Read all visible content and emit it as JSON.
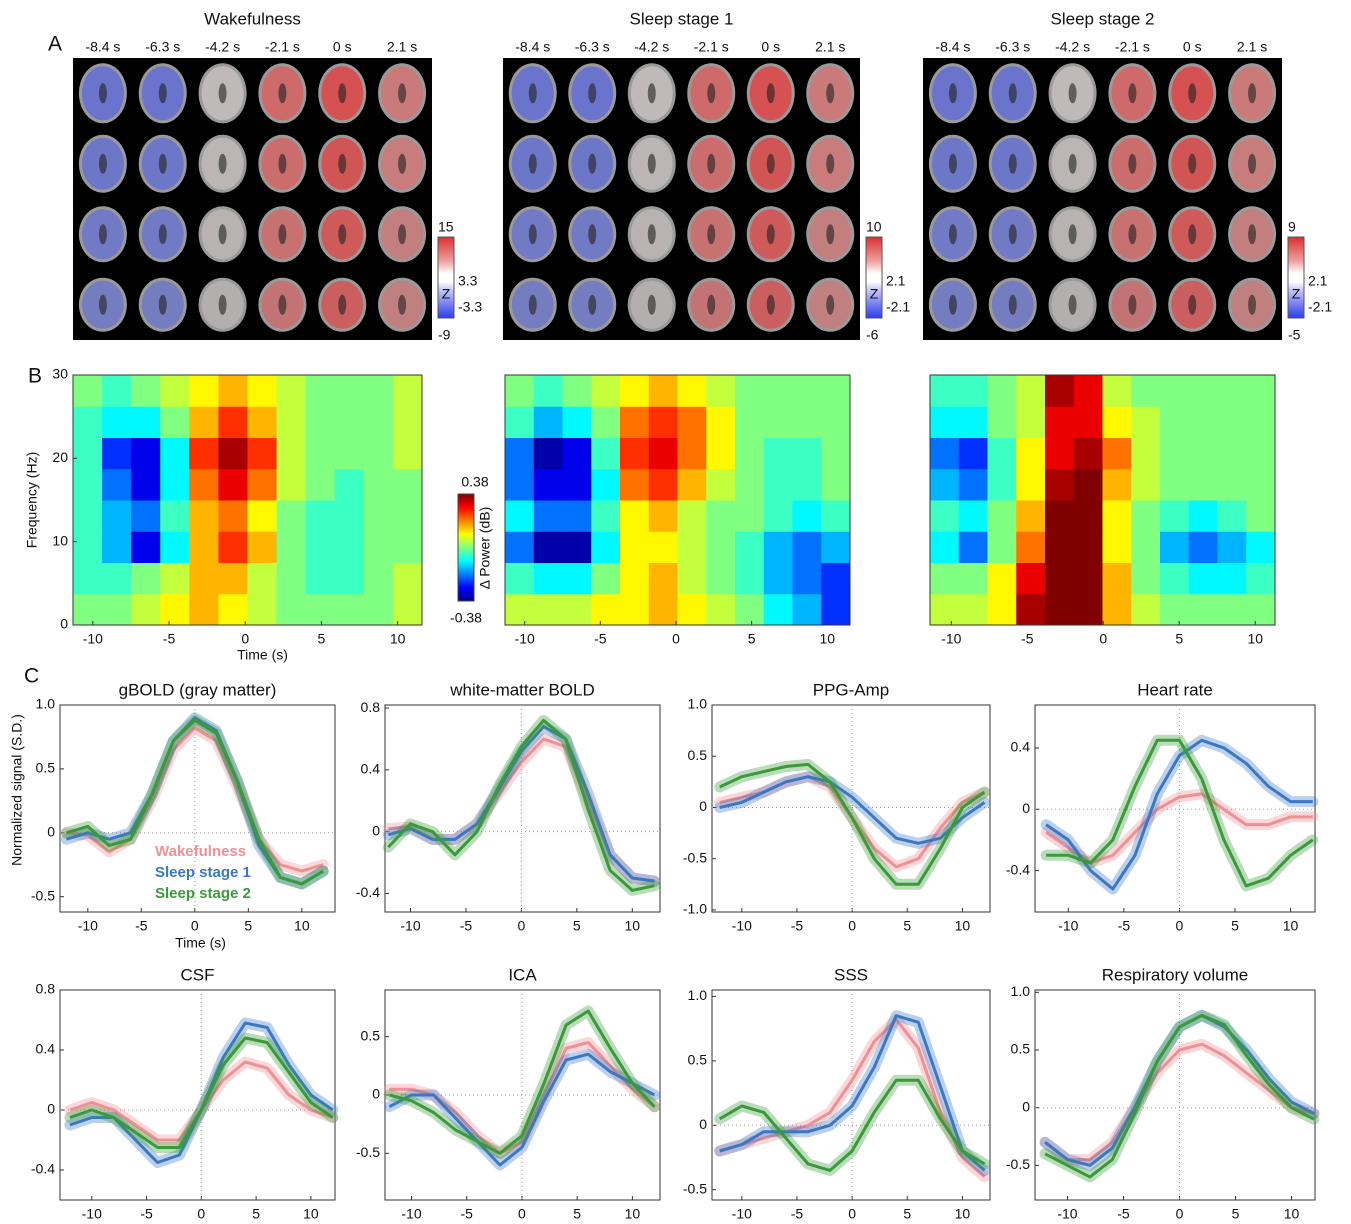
{
  "panel_labels": [
    "A",
    "B",
    "C"
  ],
  "brain_maps": [
    {
      "title": "Wakefulness",
      "time_labels": [
        "-8.4 s",
        "-6.3 s",
        "-4.2 s",
        "-2.1 s",
        "0 s",
        "2.1 s"
      ],
      "colorbar": {
        "label": "Z",
        "max": 15,
        "upper": 3.3,
        "lower": -3.3,
        "min": -9
      }
    },
    {
      "title": "Sleep stage 1",
      "time_labels": [
        "-8.4 s",
        "-6.3 s",
        "-4.2 s",
        "-2.1 s",
        "0 s",
        "2.1 s"
      ],
      "colorbar": {
        "label": "Z",
        "max": 10,
        "upper": 2.1,
        "lower": -2.1,
        "min": -6
      }
    },
    {
      "title": "Sleep stage 2",
      "time_labels": [
        "-8.4 s",
        "-6.3 s",
        "-4.2 s",
        "-2.1 s",
        "0 s",
        "2.1 s"
      ],
      "colorbar": {
        "label": "Z",
        "max": 9,
        "upper": 2.1,
        "lower": -2.1,
        "min": -5
      }
    }
  ],
  "chart_data": [
    {
      "type": "heatmap",
      "xlabel": "Time (s)",
      "ylabel": "Frequency (Hz)",
      "xlim": [
        -11.3,
        11.6
      ],
      "ylim": [
        0,
        30
      ],
      "xticks": [
        -10,
        -5,
        0,
        5,
        10
      ],
      "yticks": [
        0,
        10,
        20,
        30
      ],
      "clim": [
        -0.38,
        0.38
      ],
      "colorbar": {
        "label": "Δ Power (dB)",
        "ticks": [
          0.38,
          -0.38
        ]
      },
      "z": [
        [
          0,
          0,
          0.05,
          0.1,
          0.15,
          0.1,
          0.05,
          0,
          0,
          0,
          0,
          0.05
        ],
        [
          -0.05,
          -0.05,
          0,
          0.05,
          0.15,
          0.15,
          0.05,
          0,
          -0.05,
          -0.05,
          0,
          0.05
        ],
        [
          -0.05,
          -0.15,
          -0.3,
          -0.1,
          0.15,
          0.25,
          0.15,
          0,
          -0.05,
          -0.05,
          0,
          0
        ],
        [
          -0.05,
          -0.15,
          -0.2,
          -0.05,
          0.15,
          0.2,
          0.1,
          0,
          -0.05,
          -0.05,
          0,
          0
        ],
        [
          -0.05,
          -0.2,
          -0.3,
          -0.1,
          0.2,
          0.3,
          0.2,
          0.05,
          0,
          -0.05,
          0,
          0
        ],
        [
          -0.05,
          -0.25,
          -0.3,
          -0.1,
          0.25,
          0.35,
          0.25,
          0.05,
          0,
          0,
          0,
          0.05
        ],
        [
          -0.05,
          -0.1,
          -0.1,
          0,
          0.15,
          0.25,
          0.15,
          0.05,
          0,
          0,
          0,
          0.05
        ],
        [
          0,
          -0.05,
          0,
          0.05,
          0.1,
          0.15,
          0.1,
          0.05,
          0,
          0,
          0,
          0.05
        ]
      ]
    },
    {
      "type": "heatmap",
      "xlim": [
        -11.3,
        11.5
      ],
      "ylim": [
        0,
        30
      ],
      "xticks": [
        -10,
        -5,
        0,
        5,
        10
      ],
      "clim": [
        -0.38,
        0.38
      ],
      "z": [
        [
          0.05,
          0.05,
          0.05,
          0.1,
          0.1,
          0.15,
          0.1,
          0.05,
          0,
          -0.1,
          -0.15,
          -0.25
        ],
        [
          -0.05,
          -0.1,
          -0.1,
          0,
          0.1,
          0.15,
          0.05,
          0,
          -0.05,
          -0.15,
          -0.2,
          -0.25
        ],
        [
          -0.2,
          -0.35,
          -0.35,
          -0.1,
          0.1,
          0.1,
          0.05,
          0,
          -0.05,
          -0.15,
          -0.2,
          -0.15
        ],
        [
          -0.1,
          -0.2,
          -0.2,
          -0.05,
          0.1,
          0.15,
          0.05,
          0,
          0,
          -0.05,
          -0.1,
          -0.05
        ],
        [
          -0.2,
          -0.3,
          -0.3,
          -0.1,
          0.2,
          0.25,
          0.15,
          0.05,
          0,
          -0.05,
          -0.05,
          0
        ],
        [
          -0.2,
          -0.35,
          -0.3,
          -0.05,
          0.25,
          0.3,
          0.2,
          0.1,
          0,
          -0.05,
          -0.05,
          0
        ],
        [
          -0.05,
          -0.15,
          -0.1,
          0,
          0.2,
          0.25,
          0.2,
          0.1,
          0,
          0,
          0,
          0
        ],
        [
          0,
          -0.05,
          0,
          0.05,
          0.1,
          0.15,
          0.1,
          0.05,
          0,
          0,
          0,
          0
        ]
      ]
    },
    {
      "type": "heatmap",
      "xlim": [
        -11.4,
        11.3
      ],
      "ylim": [
        0,
        30
      ],
      "xticks": [
        -10,
        -5,
        0,
        5,
        10
      ],
      "clim": [
        -0.38,
        0.38
      ],
      "z": [
        [
          0.05,
          0.05,
          0.1,
          0.35,
          0.4,
          0.4,
          0.15,
          0.05,
          0,
          0,
          0,
          0
        ],
        [
          0,
          0,
          0.1,
          0.3,
          0.4,
          0.4,
          0.15,
          0,
          -0.05,
          -0.1,
          -0.1,
          -0.05
        ],
        [
          -0.1,
          -0.2,
          0,
          0.2,
          0.38,
          0.4,
          0.1,
          0,
          -0.15,
          -0.2,
          -0.15,
          -0.1
        ],
        [
          -0.05,
          -0.1,
          0,
          0.15,
          0.38,
          0.4,
          0.1,
          0,
          -0.05,
          -0.1,
          -0.05,
          0
        ],
        [
          -0.15,
          -0.2,
          -0.05,
          0.1,
          0.35,
          0.38,
          0.15,
          0.05,
          0,
          0,
          0,
          0
        ],
        [
          -0.2,
          -0.25,
          -0.05,
          0.1,
          0.3,
          0.35,
          0.2,
          0.05,
          0,
          0,
          0,
          0
        ],
        [
          -0.1,
          -0.1,
          0,
          0.05,
          0.3,
          0.3,
          0.1,
          0.05,
          0,
          0,
          0,
          0
        ],
        [
          -0.05,
          -0.05,
          0,
          0.05,
          0.35,
          0.3,
          0.05,
          0,
          0,
          0,
          0,
          0
        ]
      ]
    },
    {
      "type": "line",
      "title": "gBOLD (gray matter)",
      "xlabel": "Time (s)",
      "ylabel": "Normalized signal (S.D.)",
      "legend": true,
      "x": [
        -12,
        -10,
        -8,
        -6,
        -4,
        -2,
        0,
        2,
        4,
        6,
        8,
        10,
        12
      ],
      "xlim": [
        -12.6,
        13.1
      ],
      "ylim": [
        -0.62,
        1.0
      ],
      "xticks": [
        -10,
        -5,
        0,
        5,
        10
      ],
      "yticks": [
        -0.5,
        0,
        0.5,
        {
          "value": 1,
          "label": "1.0"
        }
      ],
      "series": [
        {
          "name": "Wakefulness",
          "color": "#f08f94",
          "values": [
            0,
            -0.02,
            -0.15,
            -0.05,
            0.25,
            0.65,
            0.82,
            0.72,
            0.35,
            -0.05,
            -0.25,
            -0.3,
            -0.25
          ]
        },
        {
          "name": "Sleep stage 1",
          "color": "#3b78c4",
          "values": [
            -0.05,
            0,
            -0.05,
            0,
            0.3,
            0.72,
            0.9,
            0.8,
            0.4,
            -0.1,
            -0.35,
            -0.4,
            -0.3
          ]
        },
        {
          "name": "Sleep stage 2",
          "color": "#3a9a3a",
          "values": [
            0,
            0.05,
            -0.1,
            -0.05,
            0.3,
            0.72,
            0.88,
            0.78,
            0.4,
            -0.05,
            -0.35,
            -0.4,
            -0.3
          ]
        }
      ]
    },
    {
      "type": "line",
      "title": "white-matter BOLD",
      "x": [
        -12,
        -10,
        -8,
        -6,
        -4,
        -2,
        0,
        2,
        4,
        6,
        8,
        10,
        12
      ],
      "xlim": [
        -12.3,
        12.5
      ],
      "ylim": [
        -0.52,
        0.82
      ],
      "xticks": [
        -10,
        -5,
        0,
        5,
        10
      ],
      "yticks": [
        -0.4,
        0,
        0.4,
        0.8
      ],
      "series": [
        {
          "color": "#f08f94",
          "values": [
            0.02,
            0.03,
            -0.05,
            -0.05,
            0.05,
            0.25,
            0.45,
            0.6,
            0.55,
            0.2,
            -0.15,
            -0.3,
            -0.32
          ]
        },
        {
          "color": "#3b78c4",
          "values": [
            -0.02,
            0.02,
            -0.05,
            -0.05,
            0.05,
            0.28,
            0.52,
            0.68,
            0.6,
            0.25,
            -0.15,
            -0.3,
            -0.32
          ]
        },
        {
          "color": "#3a9a3a",
          "values": [
            -0.1,
            0.05,
            0,
            -0.15,
            0,
            0.3,
            0.55,
            0.72,
            0.6,
            0.15,
            -0.25,
            -0.38,
            -0.35
          ]
        }
      ]
    },
    {
      "type": "line",
      "title": "PPG-Amp",
      "x": [
        -12,
        -10,
        -8,
        -6,
        -4,
        -2,
        0,
        2,
        4,
        6,
        8,
        10,
        12
      ],
      "xlim": [
        -12.7,
        12.5
      ],
      "ylim": [
        -1.02,
        1.0
      ],
      "xticks": [
        -10,
        -5,
        0,
        5,
        10
      ],
      "yticks": [
        {
          "value": -1,
          "label": "-1.0"
        },
        -0.5,
        0,
        0.5,
        {
          "value": 1,
          "label": "1.0"
        }
      ],
      "series": [
        {
          "color": "#f08f94",
          "values": [
            0.05,
            0.1,
            0.15,
            0.25,
            0.3,
            0.2,
            -0.1,
            -0.4,
            -0.58,
            -0.5,
            -0.2,
            0.05,
            0.15
          ]
        },
        {
          "color": "#3b78c4",
          "values": [
            0,
            0.05,
            0.15,
            0.25,
            0.3,
            0.25,
            0.1,
            -0.1,
            -0.3,
            -0.35,
            -0.3,
            -0.1,
            0.05
          ]
        },
        {
          "color": "#3a9a3a",
          "values": [
            0.2,
            0.3,
            0.35,
            0.4,
            0.42,
            0.25,
            -0.1,
            -0.5,
            -0.75,
            -0.75,
            -0.4,
            0,
            0.15
          ]
        }
      ]
    },
    {
      "type": "line",
      "title": "Heart rate",
      "x": [
        -12,
        -10,
        -8,
        -6,
        -4,
        -2,
        0,
        2,
        4,
        6,
        8,
        10,
        12
      ],
      "xlim": [
        -13.0,
        12.2
      ],
      "ylim": [
        -0.67,
        0.68
      ],
      "xticks": [
        -10,
        -5,
        0,
        5,
        10
      ],
      "yticks": [
        -0.4,
        0,
        0.4
      ],
      "series": [
        {
          "color": "#f08f94",
          "values": [
            -0.15,
            -0.25,
            -0.35,
            -0.3,
            -0.15,
            0,
            0.08,
            0.1,
            0,
            -0.1,
            -0.1,
            -0.05,
            -0.05
          ]
        },
        {
          "color": "#3b78c4",
          "values": [
            -0.1,
            -0.2,
            -0.4,
            -0.52,
            -0.3,
            0.1,
            0.35,
            0.45,
            0.4,
            0.3,
            0.15,
            0.05,
            0.05
          ]
        },
        {
          "color": "#3a9a3a",
          "values": [
            -0.3,
            -0.3,
            -0.35,
            -0.2,
            0.15,
            0.45,
            0.45,
            0.2,
            -0.2,
            -0.5,
            -0.45,
            -0.3,
            -0.2
          ]
        }
      ]
    },
    {
      "type": "line",
      "title": "CSF",
      "x": [
        -12,
        -10,
        -8,
        -6,
        -4,
        -2,
        0,
        2,
        4,
        6,
        8,
        10,
        12
      ],
      "xlim": [
        -12.9,
        12.2
      ],
      "ylim": [
        -0.6,
        0.8
      ],
      "xticks": [
        -10,
        -5,
        0,
        5,
        10
      ],
      "yticks": [
        -0.4,
        0,
        0.4,
        0.8
      ],
      "series": [
        {
          "color": "#f08f94",
          "values": [
            0,
            0.05,
            0,
            -0.1,
            -0.2,
            -0.2,
            0,
            0.2,
            0.32,
            0.28,
            0.1,
            0,
            -0.05
          ]
        },
        {
          "color": "#3b78c4",
          "values": [
            -0.1,
            -0.05,
            -0.05,
            -0.2,
            -0.35,
            -0.3,
            0,
            0.35,
            0.58,
            0.55,
            0.3,
            0.1,
            0
          ]
        },
        {
          "color": "#3a9a3a",
          "values": [
            -0.05,
            0,
            -0.05,
            -0.15,
            -0.25,
            -0.25,
            0,
            0.3,
            0.48,
            0.45,
            0.25,
            0.05,
            -0.05
          ]
        }
      ]
    },
    {
      "type": "line",
      "title": "ICA",
      "x": [
        -12,
        -10,
        -8,
        -6,
        -4,
        -2,
        0,
        2,
        4,
        6,
        8,
        10,
        12
      ],
      "xlim": [
        -12.4,
        12.5
      ],
      "ylim": [
        -0.9,
        0.9
      ],
      "xticks": [
        -10,
        -5,
        0,
        5,
        10
      ],
      "yticks": [
        -0.5,
        0,
        0.5
      ],
      "series": [
        {
          "color": "#f08f94",
          "values": [
            0.05,
            0.05,
            0,
            -0.15,
            -0.35,
            -0.5,
            -0.4,
            0,
            0.4,
            0.45,
            0.25,
            0.05,
            -0.1
          ]
        },
        {
          "color": "#3b78c4",
          "values": [
            -0.1,
            0,
            0,
            -0.2,
            -0.4,
            -0.6,
            -0.45,
            -0.05,
            0.3,
            0.35,
            0.2,
            0.1,
            0
          ]
        },
        {
          "color": "#3a9a3a",
          "values": [
            0,
            -0.05,
            -0.15,
            -0.3,
            -0.4,
            -0.5,
            -0.35,
            0.1,
            0.6,
            0.72,
            0.4,
            0.1,
            -0.1
          ]
        }
      ]
    },
    {
      "type": "line",
      "title": "SSS",
      "x": [
        -12,
        -10,
        -8,
        -6,
        -4,
        -2,
        0,
        2,
        4,
        6,
        8,
        10,
        12
      ],
      "xlim": [
        -12.7,
        12.5
      ],
      "ylim": [
        -0.58,
        1.05
      ],
      "xticks": [
        -10,
        -5,
        0,
        5,
        10
      ],
      "yticks": [
        -0.5,
        0,
        0.5,
        {
          "value": 1,
          "label": "1.0"
        }
      ],
      "series": [
        {
          "color": "#f08f94",
          "values": [
            -0.2,
            -0.15,
            -0.1,
            -0.05,
            0,
            0.1,
            0.35,
            0.65,
            0.82,
            0.6,
            0.1,
            -0.25,
            -0.4
          ]
        },
        {
          "color": "#3b78c4",
          "values": [
            -0.2,
            -0.15,
            -0.05,
            -0.05,
            -0.05,
            0,
            0.15,
            0.45,
            0.85,
            0.8,
            0.3,
            -0.2,
            -0.35
          ]
        },
        {
          "color": "#3a9a3a",
          "values": [
            0.05,
            0.15,
            0.1,
            -0.1,
            -0.3,
            -0.35,
            -0.2,
            0.1,
            0.35,
            0.35,
            0.05,
            -0.2,
            -0.3
          ]
        }
      ]
    },
    {
      "type": "line",
      "title": "Respiratory volume",
      "x": [
        -12,
        -10,
        -8,
        -6,
        -4,
        -2,
        0,
        2,
        4,
        6,
        8,
        10,
        12
      ],
      "xlim": [
        -12.9,
        12.1
      ],
      "ylim": [
        -0.8,
        1.02
      ],
      "xticks": [
        -10,
        -5,
        0,
        5,
        10
      ],
      "yticks": [
        -0.5,
        0,
        0.5,
        {
          "value": 1,
          "label": "1.0"
        }
      ],
      "series": [
        {
          "color": "#f08f94",
          "values": [
            -0.3,
            -0.45,
            -0.45,
            -0.3,
            0,
            0.3,
            0.5,
            0.55,
            0.45,
            0.3,
            0.15,
            0,
            -0.05
          ]
        },
        {
          "color": "#3b78c4",
          "values": [
            -0.3,
            -0.45,
            -0.5,
            -0.35,
            0,
            0.4,
            0.7,
            0.8,
            0.7,
            0.5,
            0.25,
            0.05,
            -0.05
          ]
        },
        {
          "color": "#3a9a3a",
          "values": [
            -0.4,
            -0.5,
            -0.6,
            -0.45,
            -0.05,
            0.4,
            0.7,
            0.8,
            0.72,
            0.45,
            0.2,
            0,
            -0.1
          ]
        }
      ]
    }
  ]
}
